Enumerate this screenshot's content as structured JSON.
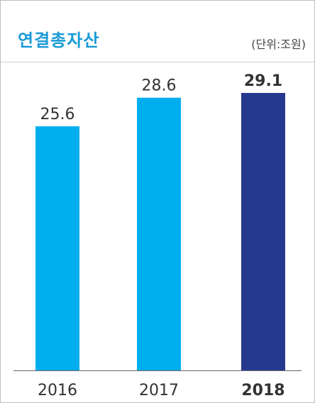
{
  "header": {
    "title": "연결총자산",
    "unit_label": "(단위:조원)"
  },
  "colors": {
    "title": "#1a9ad6",
    "bar_default": "#00aeef",
    "bar_highlight": "#253a8e",
    "axis": "#666666"
  },
  "chart_data": {
    "type": "bar",
    "title": "연결총자산",
    "unit": "(단위:조원)",
    "categories": [
      "2016",
      "2017",
      "2018"
    ],
    "values": [
      25.6,
      28.6,
      29.1
    ],
    "value_labels": [
      "25.6",
      "28.6",
      "29.1"
    ],
    "highlight_index": 2,
    "xlabel": "",
    "ylabel": "",
    "ylim": [
      0,
      29.1
    ],
    "grid": false,
    "legend": "none"
  }
}
